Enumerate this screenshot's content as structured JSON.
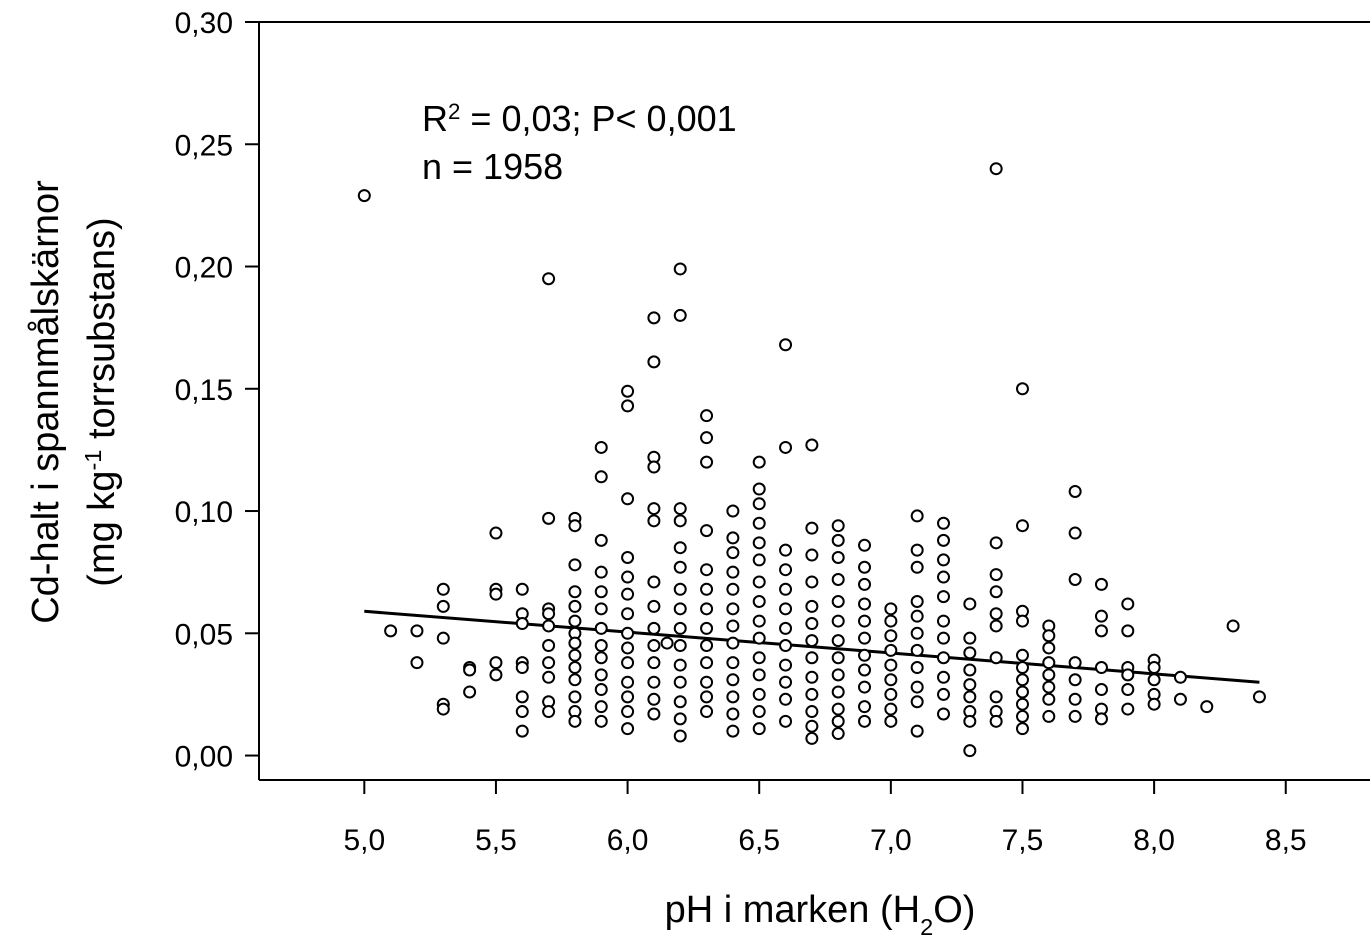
{
  "chart_data": {
    "type": "scatter",
    "xlabel": [
      "pH  i marken (H",
      "2",
      "O)"
    ],
    "ylabel": {
      "line1": "Cd-halt i spannmålskärnor",
      "line2": [
        "(mg kg",
        "-1",
        " torrsubstans)"
      ]
    },
    "annotation": {
      "line1": [
        "R",
        "2",
        " = 0,03; P< 0,001"
      ],
      "line2": "n = 1958"
    },
    "xlim": [
      4.6,
      8.82
    ],
    "ylim": [
      -0.01,
      0.3
    ],
    "xticks": [
      {
        "value": 5.0,
        "label": "5,0"
      },
      {
        "value": 5.5,
        "label": "5,5"
      },
      {
        "value": 6.0,
        "label": "6,0"
      },
      {
        "value": 6.5,
        "label": "6,5"
      },
      {
        "value": 7.0,
        "label": "7,0"
      },
      {
        "value": 7.5,
        "label": "7,5"
      },
      {
        "value": 8.0,
        "label": "8,0"
      },
      {
        "value": 8.5,
        "label": "8,5"
      }
    ],
    "yticks": [
      {
        "value": 0,
        "label": "0,00"
      },
      {
        "value": 0.05,
        "label": "0,05"
      },
      {
        "value": 0.1,
        "label": "0,10"
      },
      {
        "value": 0.15,
        "label": "0,15"
      },
      {
        "value": 0.2,
        "label": "0,20"
      },
      {
        "value": 0.25,
        "label": "0,25"
      },
      {
        "value": 0.3,
        "label": "0,30"
      }
    ],
    "marker_fill": "#ffffff",
    "marker_stroke": "#000000",
    "line_color": "#000000",
    "trend_line": {
      "x": [
        5.0,
        8.4
      ],
      "y": [
        0.059,
        0.03
      ]
    },
    "x": [
      5.0,
      5.1,
      5.2,
      5.3,
      5.4,
      5.5,
      5.6,
      5.7,
      5.8,
      5.9,
      6.0,
      6.1,
      6.15,
      6.2,
      6.3,
      6.4,
      6.5,
      6.6,
      6.7,
      6.8,
      6.9,
      7.0,
      7.1,
      7.2,
      7.3,
      7.4,
      7.5,
      7.6,
      7.7,
      7.8,
      7.9,
      8.0,
      8.1,
      8.2,
      8.3,
      8.4
    ],
    "values": [
      [
        0.229
      ],
      [
        0.051
      ],
      [
        0.051,
        0.038
      ],
      [
        0.068,
        0.061,
        0.048,
        0.021,
        0.019
      ],
      [
        0.036,
        0.035,
        0.026
      ],
      [
        0.091,
        0.068,
        0.066,
        0.038,
        0.033
      ],
      [
        0.068,
        0.058,
        0.054,
        0.038,
        0.036,
        0.024,
        0.018,
        0.01
      ],
      [
        0.195,
        0.097,
        0.06,
        0.058,
        0.053,
        0.045,
        0.038,
        0.032,
        0.022,
        0.018
      ],
      [
        0.097,
        0.094,
        0.078,
        0.067,
        0.061,
        0.055,
        0.05,
        0.046,
        0.041,
        0.036,
        0.031,
        0.024,
        0.018,
        0.014
      ],
      [
        0.126,
        0.114,
        0.088,
        0.075,
        0.067,
        0.06,
        0.052,
        0.045,
        0.04,
        0.033,
        0.027,
        0.02,
        0.014
      ],
      [
        0.149,
        0.143,
        0.105,
        0.081,
        0.073,
        0.066,
        0.058,
        0.05,
        0.044,
        0.038,
        0.03,
        0.024,
        0.018,
        0.011
      ],
      [
        0.179,
        0.161,
        0.122,
        0.118,
        0.101,
        0.096,
        0.071,
        0.061,
        0.052,
        0.045,
        0.038,
        0.03,
        0.023,
        0.017
      ],
      [
        0.046
      ],
      [
        0.199,
        0.18,
        0.101,
        0.096,
        0.085,
        0.077,
        0.068,
        0.06,
        0.052,
        0.045,
        0.037,
        0.03,
        0.022,
        0.015,
        0.008
      ],
      [
        0.139,
        0.13,
        0.12,
        0.092,
        0.076,
        0.068,
        0.06,
        0.052,
        0.045,
        0.038,
        0.03,
        0.024,
        0.018
      ],
      [
        0.1,
        0.089,
        0.083,
        0.075,
        0.068,
        0.06,
        0.053,
        0.046,
        0.038,
        0.031,
        0.024,
        0.017,
        0.01
      ],
      [
        0.12,
        0.109,
        0.103,
        0.095,
        0.087,
        0.08,
        0.071,
        0.063,
        0.055,
        0.048,
        0.04,
        0.033,
        0.025,
        0.018,
        0.011
      ],
      [
        0.168,
        0.126,
        0.084,
        0.076,
        0.068,
        0.06,
        0.052,
        0.045,
        0.037,
        0.03,
        0.023,
        0.014
      ],
      [
        0.127,
        0.093,
        0.082,
        0.071,
        0.061,
        0.054,
        0.047,
        0.04,
        0.032,
        0.025,
        0.018,
        0.012,
        0.007
      ],
      [
        0.094,
        0.088,
        0.081,
        0.072,
        0.063,
        0.055,
        0.047,
        0.04,
        0.033,
        0.026,
        0.019,
        0.014,
        0.009
      ],
      [
        0.086,
        0.077,
        0.07,
        0.062,
        0.055,
        0.048,
        0.041,
        0.035,
        0.028,
        0.02,
        0.014
      ],
      [
        0.06,
        0.055,
        0.049,
        0.043,
        0.037,
        0.031,
        0.025,
        0.019,
        0.014
      ],
      [
        0.098,
        0.084,
        0.077,
        0.063,
        0.057,
        0.05,
        0.043,
        0.036,
        0.028,
        0.022,
        0.01
      ],
      [
        0.095,
        0.088,
        0.08,
        0.073,
        0.065,
        0.055,
        0.048,
        0.04,
        0.032,
        0.025,
        0.017
      ],
      [
        0.062,
        0.048,
        0.042,
        0.035,
        0.029,
        0.024,
        0.018,
        0.014,
        0.002
      ],
      [
        0.24,
        0.087,
        0.074,
        0.067,
        0.058,
        0.053,
        0.04,
        0.024,
        0.018,
        0.014
      ],
      [
        0.15,
        0.094,
        0.059,
        0.055,
        0.041,
        0.036,
        0.031,
        0.026,
        0.021,
        0.016,
        0.011
      ],
      [
        0.053,
        0.049,
        0.044,
        0.038,
        0.033,
        0.028,
        0.023,
        0.016
      ],
      [
        0.108,
        0.091,
        0.072,
        0.038,
        0.031,
        0.023,
        0.016
      ],
      [
        0.07,
        0.057,
        0.051,
        0.036,
        0.027,
        0.019,
        0.015
      ],
      [
        0.062,
        0.051,
        0.036,
        0.033,
        0.027,
        0.019
      ],
      [
        0.039,
        0.036,
        0.031,
        0.025,
        0.021
      ],
      [
        0.032,
        0.023
      ],
      [
        0.02
      ],
      [
        0.053
      ],
      [
        0.024
      ]
    ]
  }
}
